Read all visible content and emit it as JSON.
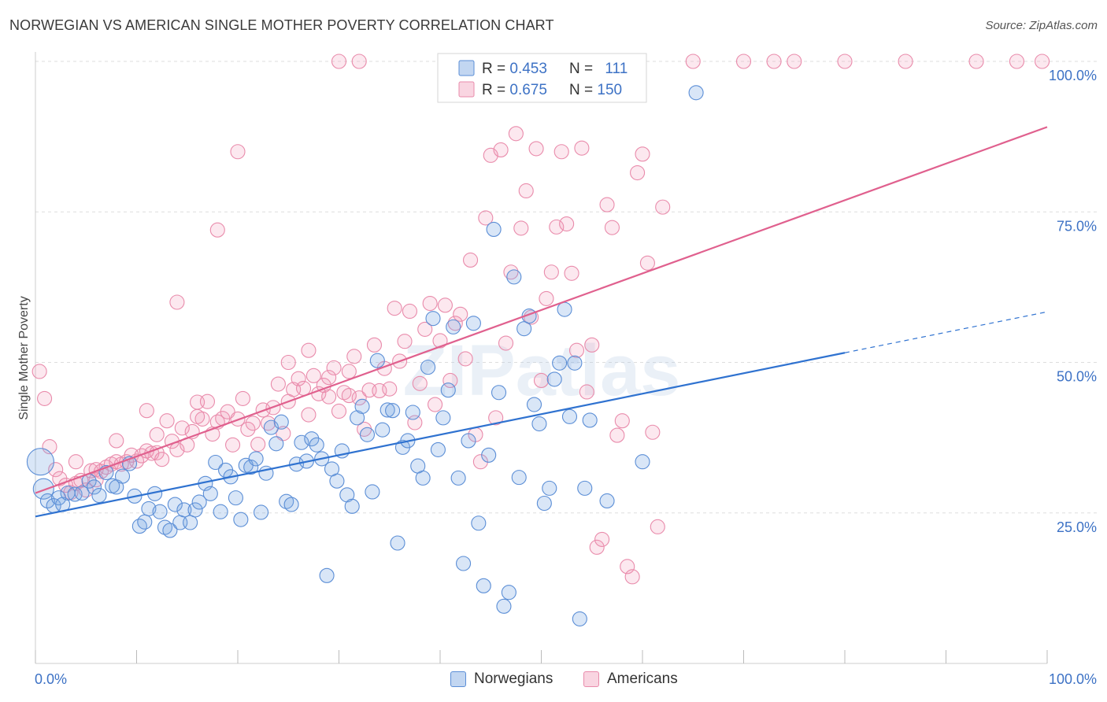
{
  "title": "NORWEGIAN VS AMERICAN SINGLE MOTHER POVERTY CORRELATION CHART",
  "source": "Source: ZipAtlas.com",
  "watermark": "ZIPatlas",
  "colors": {
    "norwegian_fill": "rgba(120,165,225,0.28)",
    "norwegian_stroke": "#5b8ed6",
    "norwegian_line": "#2f72d0",
    "american_fill": "rgba(240,150,180,0.22)",
    "american_stroke": "#e98bab",
    "american_line": "#e0608e",
    "axis_label": "#3d72c5",
    "grid": "#dedede"
  },
  "legend_top": {
    "rows": [
      {
        "r_label": "R = ",
        "r_value": "0.453",
        "n_label": "N = ",
        "n_value": "111"
      },
      {
        "r_label": "R = ",
        "r_value": "0.675",
        "n_label": "N = ",
        "n_value": "150"
      }
    ]
  },
  "legend_bottom": {
    "items": [
      "Norwegians",
      "Americans"
    ]
  },
  "chart_data": {
    "type": "scatter",
    "title": "NORWEGIAN VS AMERICAN SINGLE MOTHER POVERTY CORRELATION CHART",
    "xlabel": "",
    "ylabel": "Single Mother Poverty",
    "xlim": [
      0,
      100
    ],
    "ylim": [
      0,
      100
    ],
    "x_tick_labels": [
      "0.0%",
      "100.0%"
    ],
    "y_tick_labels": [
      {
        "value": 25,
        "label": "25.0%"
      },
      {
        "value": 50,
        "label": "50.0%"
      },
      {
        "value": 75,
        "label": "75.0%"
      },
      {
        "value": 100,
        "label": "100.0%"
      }
    ],
    "grid": true,
    "legend_position": "top-center",
    "series": [
      {
        "name": "Norwegians",
        "stats": {
          "R": 0.453,
          "N": 111
        },
        "trend": {
          "x0": 0,
          "y0": 24.4,
          "x1": 80,
          "y1": 51.6,
          "dashed_to_x": 100,
          "dashed_to_y": 58.4
        },
        "points": [
          [
            0.5,
            33.5
          ],
          [
            0.8,
            29
          ],
          [
            1.2,
            27
          ],
          [
            1.8,
            26.2
          ],
          [
            2.3,
            27.5
          ],
          [
            2.7,
            26.4
          ],
          [
            3.2,
            28.3
          ],
          [
            3.9,
            28.1
          ],
          [
            4.6,
            28.3
          ],
          [
            5.3,
            30.3
          ],
          [
            5.8,
            29.3
          ],
          [
            6.3,
            27.9
          ],
          [
            7.0,
            31.7
          ],
          [
            7.6,
            29.5
          ],
          [
            8.0,
            29.3
          ],
          [
            8.6,
            31.1
          ],
          [
            9.3,
            33.2
          ],
          [
            9.8,
            27.8
          ],
          [
            10.3,
            22.8
          ],
          [
            10.8,
            23.5
          ],
          [
            11.2,
            25.7
          ],
          [
            11.8,
            28.2
          ],
          [
            12.3,
            25.2
          ],
          [
            12.8,
            22.6
          ],
          [
            13.3,
            22.1
          ],
          [
            13.8,
            26.4
          ],
          [
            14.3,
            23.4
          ],
          [
            14.7,
            25.5
          ],
          [
            15.3,
            23.4
          ],
          [
            15.8,
            25.5
          ],
          [
            16.2,
            26.8
          ],
          [
            16.8,
            29.9
          ],
          [
            17.3,
            28.2
          ],
          [
            17.8,
            33.4
          ],
          [
            18.3,
            25.2
          ],
          [
            18.8,
            32.1
          ],
          [
            19.3,
            31.0
          ],
          [
            19.8,
            27.5
          ],
          [
            20.3,
            23.9
          ],
          [
            20.8,
            32.9
          ],
          [
            21.3,
            32.6
          ],
          [
            21.8,
            34.0
          ],
          [
            22.3,
            25.1
          ],
          [
            22.8,
            31.6
          ],
          [
            23.3,
            39.2
          ],
          [
            23.8,
            36.5
          ],
          [
            24.3,
            40.1
          ],
          [
            24.8,
            26.9
          ],
          [
            25.3,
            26.4
          ],
          [
            25.8,
            33.1
          ],
          [
            26.3,
            36.7
          ],
          [
            26.8,
            33.6
          ],
          [
            27.3,
            37.3
          ],
          [
            27.8,
            36.3
          ],
          [
            28.3,
            34.0
          ],
          [
            28.8,
            14.6
          ],
          [
            29.3,
            32.3
          ],
          [
            29.8,
            30.3
          ],
          [
            30.3,
            35.3
          ],
          [
            30.8,
            28.0
          ],
          [
            31.3,
            26.1
          ],
          [
            31.8,
            40.8
          ],
          [
            32.3,
            42.7
          ],
          [
            32.8,
            38.0
          ],
          [
            33.3,
            28.5
          ],
          [
            33.8,
            50.3
          ],
          [
            34.3,
            38.8
          ],
          [
            34.8,
            42.1
          ],
          [
            35.3,
            42.0
          ],
          [
            35.8,
            20.0
          ],
          [
            36.3,
            35.9
          ],
          [
            36.8,
            37.0
          ],
          [
            37.3,
            41.7
          ],
          [
            37.8,
            32.8
          ],
          [
            38.3,
            30.8
          ],
          [
            38.8,
            49.2
          ],
          [
            39.3,
            57.3
          ],
          [
            39.8,
            35.5
          ],
          [
            40.3,
            40.8
          ],
          [
            40.8,
            45.4
          ],
          [
            41.3,
            55.9
          ],
          [
            41.8,
            30.8
          ],
          [
            42.3,
            16.6
          ],
          [
            42.8,
            37.0
          ],
          [
            43.3,
            56.5
          ],
          [
            43.8,
            23.3
          ],
          [
            44.3,
            12.9
          ],
          [
            44.8,
            34.6
          ],
          [
            45.3,
            72.1
          ],
          [
            45.8,
            45.0
          ],
          [
            46.3,
            9.5
          ],
          [
            46.8,
            11.8
          ],
          [
            47.3,
            64.2
          ],
          [
            47.8,
            30.9
          ],
          [
            48.3,
            55.6
          ],
          [
            48.8,
            57.7
          ],
          [
            49.3,
            43.0
          ],
          [
            49.8,
            39.8
          ],
          [
            50.3,
            26.6
          ],
          [
            50.8,
            29.1
          ],
          [
            51.3,
            47.2
          ],
          [
            51.8,
            49.9
          ],
          [
            52.3,
            58.8
          ],
          [
            52.8,
            41.0
          ],
          [
            53.3,
            49.9
          ],
          [
            53.8,
            7.4
          ],
          [
            54.3,
            29.1
          ],
          [
            54.8,
            40.4
          ],
          [
            60,
            33.5
          ],
          [
            65.3,
            94.8
          ],
          [
            56.5,
            27.0
          ]
        ]
      },
      {
        "name": "Americans",
        "stats": {
          "R": 0.675,
          "N": 150
        },
        "trend": {
          "x0": 0,
          "y0": 28.3,
          "x1": 100,
          "y1": 89.1
        },
        "points": [
          [
            0.4,
            48.5
          ],
          [
            0.9,
            44.0
          ],
          [
            1.4,
            36.0
          ],
          [
            2.0,
            32.2
          ],
          [
            2.4,
            30.7
          ],
          [
            3.0,
            29.6
          ],
          [
            3.5,
            28.4
          ],
          [
            4.0,
            29.9
          ],
          [
            4.5,
            30.4
          ],
          [
            5.0,
            28.8
          ],
          [
            5.5,
            32.0
          ],
          [
            6.0,
            32.2
          ],
          [
            6.5,
            31.9
          ],
          [
            7.0,
            32.6
          ],
          [
            7.5,
            33.1
          ],
          [
            8.0,
            33.5
          ],
          [
            8.5,
            33.1
          ],
          [
            9.0,
            33.5
          ],
          [
            9.5,
            34.6
          ],
          [
            10.0,
            33.6
          ],
          [
            10.5,
            34.5
          ],
          [
            11.0,
            35.3
          ],
          [
            11.5,
            34.9
          ],
          [
            12.0,
            35.0
          ],
          [
            12.5,
            33.9
          ],
          [
            13.0,
            40.3
          ],
          [
            13.5,
            36.9
          ],
          [
            14.0,
            35.5
          ],
          [
            14.5,
            39.1
          ],
          [
            15.0,
            36.3
          ],
          [
            15.5,
            38.5
          ],
          [
            16.0,
            43.4
          ],
          [
            16.5,
            40.6
          ],
          [
            17.0,
            43.5
          ],
          [
            17.5,
            38.1
          ],
          [
            18.0,
            40.1
          ],
          [
            18.5,
            40.7
          ],
          [
            19.0,
            41.8
          ],
          [
            19.5,
            36.3
          ],
          [
            20.0,
            40.6
          ],
          [
            20.5,
            44.0
          ],
          [
            21.0,
            38.9
          ],
          [
            21.5,
            39.9
          ],
          [
            22.0,
            36.4
          ],
          [
            22.5,
            42.1
          ],
          [
            23.0,
            39.9
          ],
          [
            23.5,
            42.5
          ],
          [
            24.0,
            46.4
          ],
          [
            24.5,
            38.2
          ],
          [
            25.0,
            43.5
          ],
          [
            25.5,
            45.5
          ],
          [
            26.0,
            47.3
          ],
          [
            26.5,
            45.7
          ],
          [
            27.0,
            41.3
          ],
          [
            27.5,
            47.8
          ],
          [
            28.0,
            44.8
          ],
          [
            28.5,
            46.2
          ],
          [
            29.0,
            44.3
          ],
          [
            29.5,
            49.1
          ],
          [
            30.0,
            41.9
          ],
          [
            30.5,
            45.0
          ],
          [
            31.0,
            48.5
          ],
          [
            31.5,
            51.0
          ],
          [
            32.0,
            44.1
          ],
          [
            32.5,
            38.9
          ],
          [
            33.0,
            45.4
          ],
          [
            33.5,
            52.9
          ],
          [
            34.0,
            45.3
          ],
          [
            34.5,
            49.0
          ],
          [
            35.0,
            45.6
          ],
          [
            35.5,
            59.0
          ],
          [
            36.0,
            50.2
          ],
          [
            36.5,
            53.5
          ],
          [
            37.0,
            58.5
          ],
          [
            37.5,
            40.0
          ],
          [
            38.0,
            46.5
          ],
          [
            38.5,
            55.5
          ],
          [
            39.0,
            59.8
          ],
          [
            39.5,
            43.0
          ],
          [
            40.0,
            53.6
          ],
          [
            40.5,
            59.5
          ],
          [
            41.0,
            47.0
          ],
          [
            41.5,
            56.5
          ],
          [
            42.0,
            58.0
          ],
          [
            42.5,
            50.6
          ],
          [
            43.0,
            67.0
          ],
          [
            43.5,
            38.0
          ],
          [
            44.0,
            33.5
          ],
          [
            44.5,
            74.0
          ],
          [
            45.0,
            84.4
          ],
          [
            45.5,
            40.8
          ],
          [
            46.0,
            85.3
          ],
          [
            46.5,
            53.2
          ],
          [
            47.0,
            65.0
          ],
          [
            47.5,
            88.0
          ],
          [
            48.0,
            72.3
          ],
          [
            48.5,
            78.5
          ],
          [
            49.0,
            57.5
          ],
          [
            49.5,
            85.5
          ],
          [
            50.0,
            47.0
          ],
          [
            50.5,
            60.6
          ],
          [
            51.0,
            65.0
          ],
          [
            51.5,
            72.5
          ],
          [
            52.0,
            85.0
          ],
          [
            52.5,
            73.0
          ],
          [
            53.0,
            64.8
          ],
          [
            53.5,
            52.0
          ],
          [
            54.0,
            85.6
          ],
          [
            54.5,
            45.1
          ],
          [
            55.0,
            52.9
          ],
          [
            55.5,
            19.3
          ],
          [
            56.0,
            20.6
          ],
          [
            56.5,
            76.2
          ],
          [
            57.0,
            72.4
          ],
          [
            57.5,
            37.9
          ],
          [
            58.0,
            40.3
          ],
          [
            58.5,
            16.1
          ],
          [
            59.0,
            14.4
          ],
          [
            59.5,
            81.5
          ],
          [
            60.0,
            84.6
          ],
          [
            60.5,
            66.5
          ],
          [
            61.0,
            38.4
          ],
          [
            61.5,
            22.7
          ],
          [
            62.0,
            75.8
          ],
          [
            55.0,
            100
          ],
          [
            58.0,
            100
          ],
          [
            65.0,
            100
          ],
          [
            70.0,
            100
          ],
          [
            73.0,
            100
          ],
          [
            75.0,
            100
          ],
          [
            80.0,
            100
          ],
          [
            86.0,
            100
          ],
          [
            93.0,
            100
          ],
          [
            97.0,
            100
          ],
          [
            99.5,
            100
          ],
          [
            30.0,
            100
          ],
          [
            32.0,
            100
          ],
          [
            20.0,
            85.0
          ],
          [
            18.0,
            72.0
          ],
          [
            14.0,
            60.0
          ],
          [
            11.0,
            42.0
          ],
          [
            8.0,
            37.0
          ],
          [
            6.0,
            30.5
          ],
          [
            4.0,
            33.5
          ],
          [
            12.0,
            38.0
          ],
          [
            16.0,
            41.0
          ],
          [
            25.0,
            50.0
          ],
          [
            27.0,
            52.0
          ],
          [
            29.0,
            47.5
          ],
          [
            31.0,
            44.5
          ]
        ]
      }
    ]
  }
}
